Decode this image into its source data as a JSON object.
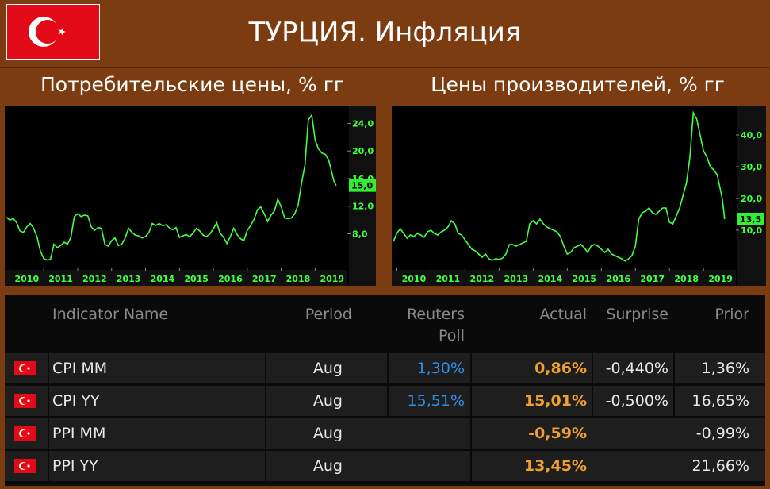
{
  "header": {
    "title": "ТУРЦИЯ. Инфляция",
    "flag_icon": "turkey-flag-icon",
    "colors": {
      "flag": "#e30a17",
      "background": "#7a3c10",
      "line": "#44ff44"
    }
  },
  "subtitles": {
    "left": "Потребительские цены, % гг",
    "right": "Цены производителей, % гг"
  },
  "chart_data": [
    {
      "type": "line",
      "title": "Потребительские цены, % гг",
      "xlabel": "",
      "ylabel": "",
      "x_ticks": [
        "2010",
        "2011",
        "2012",
        "2013",
        "2014",
        "2015",
        "2016",
        "2017",
        "2018",
        "2019"
      ],
      "y_ticks": [
        "8,0",
        "12,0",
        "16,0",
        "20,0",
        "24,0"
      ],
      "ylim": [
        3,
        26
      ],
      "last_value_label": "15,0",
      "series": [
        {
          "x": [
            2009.9,
            2010.0,
            2010.1,
            2010.2,
            2010.3,
            2010.4,
            2010.5,
            2010.6,
            2010.7,
            2010.8,
            2010.9,
            2011.0,
            2011.1,
            2011.2,
            2011.3,
            2011.4,
            2011.5,
            2011.6,
            2011.7,
            2011.8,
            2011.9,
            2012.0,
            2012.1,
            2012.2,
            2012.3,
            2012.4,
            2012.5,
            2012.6,
            2012.7,
            2012.8,
            2012.9,
            2013.0,
            2013.1,
            2013.2,
            2013.3,
            2013.4,
            2013.5,
            2013.6,
            2013.7,
            2013.8,
            2013.9,
            2014.0,
            2014.1,
            2014.2,
            2014.3,
            2014.4,
            2014.5,
            2014.6,
            2014.7,
            2014.8,
            2014.9,
            2015.0,
            2015.1,
            2015.2,
            2015.3,
            2015.4,
            2015.5,
            2015.6,
            2015.7,
            2015.8,
            2015.9,
            2016.0,
            2016.1,
            2016.2,
            2016.3,
            2016.4,
            2016.5,
            2016.6,
            2016.7,
            2016.8,
            2016.9,
            2017.0,
            2017.1,
            2017.2,
            2017.3,
            2017.4,
            2017.5,
            2017.6,
            2017.7,
            2017.8,
            2017.9,
            2018.0,
            2018.1,
            2018.2,
            2018.3,
            2018.4,
            2018.5,
            2018.6,
            2018.7,
            2018.8,
            2018.9,
            2019.0,
            2019.1,
            2019.2,
            2019.3,
            2019.4,
            2019.55,
            2019.62
          ],
          "values": [
            10.4,
            10.0,
            10.2,
            9.6,
            8.4,
            8.2,
            9.0,
            9.5,
            8.8,
            7.6,
            5.5,
            4.4,
            4.2,
            4.3,
            6.5,
            6.0,
            6.3,
            6.8,
            6.5,
            7.5,
            10.5,
            10.9,
            10.5,
            10.7,
            10.6,
            9.0,
            8.5,
            8.9,
            8.8,
            6.5,
            6.2,
            7.0,
            7.4,
            6.3,
            6.5,
            7.4,
            8.8,
            8.2,
            7.8,
            7.7,
            7.4,
            7.6,
            8.2,
            9.5,
            9.2,
            9.5,
            9.2,
            9.3,
            8.9,
            8.6,
            8.9,
            7.5,
            7.7,
            7.9,
            7.6,
            8.1,
            8.8,
            8.4,
            7.8,
            7.6,
            8.0,
            8.7,
            9.6,
            8.1,
            7.5,
            6.6,
            7.6,
            8.8,
            7.9,
            7.3,
            7.0,
            8.5,
            9.2,
            10.1,
            11.5,
            11.9,
            10.9,
            9.8,
            10.7,
            11.3,
            13.0,
            11.9,
            10.3,
            10.2,
            10.3,
            10.9,
            12.2,
            15.4,
            17.9,
            24.5,
            25.2,
            21.6,
            20.3,
            19.7,
            19.5,
            18.7,
            15.7,
            15.0
          ]
        }
      ]
    },
    {
      "type": "line",
      "title": "Цены производителей, % гг",
      "xlabel": "",
      "ylabel": "",
      "x_ticks": [
        "2010",
        "2011",
        "2012",
        "2013",
        "2014",
        "2015",
        "2016",
        "2017",
        "2018",
        "2019"
      ],
      "y_ticks": [
        "10,0",
        "20,0",
        "30,0",
        "40,0"
      ],
      "ylim": [
        -2,
        48
      ],
      "last_value_label": "13,5",
      "series": [
        {
          "x": [
            2009.9,
            2010.0,
            2010.1,
            2010.2,
            2010.3,
            2010.4,
            2010.5,
            2010.6,
            2010.7,
            2010.8,
            2010.9,
            2011.0,
            2011.1,
            2011.2,
            2011.3,
            2011.4,
            2011.5,
            2011.6,
            2011.7,
            2011.8,
            2011.9,
            2012.0,
            2012.1,
            2012.2,
            2012.3,
            2012.4,
            2012.5,
            2012.6,
            2012.7,
            2012.8,
            2012.9,
            2013.0,
            2013.1,
            2013.2,
            2013.3,
            2013.4,
            2013.5,
            2013.6,
            2013.7,
            2013.8,
            2013.9,
            2014.0,
            2014.1,
            2014.2,
            2014.3,
            2014.4,
            2014.5,
            2014.6,
            2014.7,
            2014.8,
            2014.9,
            2015.0,
            2015.1,
            2015.2,
            2015.3,
            2015.4,
            2015.5,
            2015.6,
            2015.7,
            2015.8,
            2015.9,
            2016.0,
            2016.1,
            2016.2,
            2016.3,
            2016.4,
            2016.5,
            2016.6,
            2016.7,
            2016.8,
            2016.9,
            2017.0,
            2017.1,
            2017.2,
            2017.3,
            2017.4,
            2017.5,
            2017.6,
            2017.7,
            2017.8,
            2017.9,
            2018.0,
            2018.1,
            2018.2,
            2018.3,
            2018.4,
            2018.5,
            2018.6,
            2018.7,
            2018.8,
            2018.9,
            2019.0,
            2019.1,
            2019.2,
            2019.3,
            2019.4,
            2019.55,
            2019.62
          ],
          "values": [
            6.5,
            9.0,
            10.5,
            9.0,
            7.5,
            8.5,
            8.0,
            9.0,
            8.5,
            7.8,
            9.5,
            10.0,
            9.0,
            8.5,
            9.5,
            10.0,
            11.0,
            13.0,
            12.0,
            9.0,
            8.5,
            7.0,
            5.5,
            4.0,
            3.5,
            2.5,
            1.5,
            2.5,
            1.0,
            0.5,
            1.0,
            0.8,
            1.2,
            2.5,
            5.5,
            5.5,
            5.0,
            5.5,
            6.0,
            6.5,
            12.0,
            13.0,
            12.0,
            13.5,
            12.0,
            11.0,
            10.5,
            10.0,
            9.5,
            8.0,
            5.0,
            2.5,
            3.0,
            4.5,
            5.0,
            5.5,
            4.5,
            3.0,
            5.0,
            5.5,
            5.0,
            4.0,
            3.0,
            4.0,
            2.5,
            2.0,
            1.5,
            1.0,
            0.3,
            1.0,
            2.0,
            5.0,
            13.5,
            15.5,
            16.0,
            17.0,
            15.5,
            15.0,
            16.0,
            17.0,
            17.0,
            12.5,
            12.0,
            14.5,
            17.0,
            21.0,
            25.0,
            33.0,
            47.0,
            45.0,
            40.0,
            35.0,
            33.0,
            30.0,
            29.0,
            27.5,
            20.0,
            13.5
          ]
        }
      ]
    }
  ],
  "table": {
    "headers": {
      "name": "Indicator Name",
      "period": "Period",
      "poll_1": "Reuters",
      "poll_2": "Poll",
      "actual": "Actual",
      "surprise": "Surprise",
      "prior": "Prior"
    },
    "rows": [
      {
        "name": "CPI MM",
        "period": "Aug",
        "poll": "1,30%",
        "actual": "0,86%",
        "surprise": "-0,440%",
        "prior": "1,36%"
      },
      {
        "name": "CPI YY",
        "period": "Aug",
        "poll": "15,51%",
        "actual": "15,01%",
        "surprise": "-0,500%",
        "prior": "16,65%"
      },
      {
        "name": "PPI MM",
        "period": "Aug",
        "poll": "",
        "actual": "-0,59%",
        "surprise": "",
        "prior": "-0,99%"
      },
      {
        "name": "PPI YY",
        "period": "Aug",
        "poll": "",
        "actual": "13,45%",
        "surprise": "",
        "prior": "21,66%"
      }
    ]
  }
}
